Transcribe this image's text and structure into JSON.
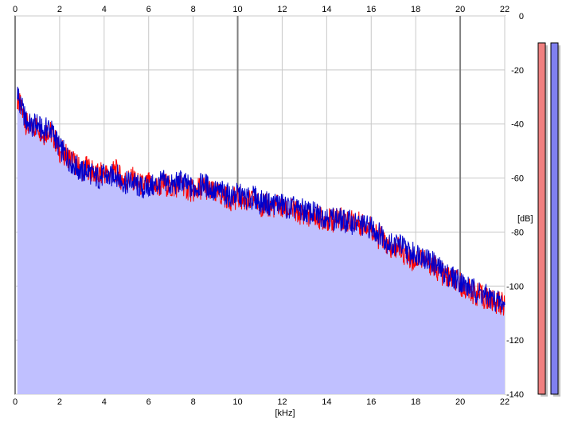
{
  "chart_data": {
    "type": "area",
    "x_ticks": [
      0,
      2,
      4,
      6,
      8,
      10,
      12,
      14,
      16,
      18,
      20,
      22
    ],
    "xlim": [
      0,
      22
    ],
    "xlabel": "[kHz]",
    "y_ticks": [
      0,
      -20,
      -40,
      -60,
      -80,
      -100,
      -120,
      -140
    ],
    "ylim": [
      -140,
      0
    ],
    "ylabel": "[dB]",
    "grid": true,
    "series": [
      {
        "channel": "left",
        "color": "#ff0000",
        "x": [
          0.1,
          0.25,
          0.5,
          0.75,
          1,
          1.25,
          1.5,
          1.75,
          2,
          2.25,
          2.5,
          2.75,
          3,
          3.25,
          3.5,
          3.75,
          4,
          4.25,
          4.5,
          4.75,
          5,
          5.25,
          5.5,
          5.75,
          6,
          6.25,
          6.5,
          6.75,
          7,
          7.25,
          7.5,
          7.75,
          8,
          8.25,
          8.5,
          8.75,
          9,
          9.25,
          9.5,
          9.75,
          10,
          10.25,
          10.5,
          10.75,
          11,
          11.25,
          11.5,
          11.75,
          12,
          12.25,
          12.5,
          12.75,
          13,
          13.25,
          13.5,
          13.75,
          14,
          14.25,
          14.5,
          14.75,
          15,
          15.25,
          15.5,
          15.75,
          16,
          16.25,
          16.5,
          16.75,
          17,
          17.25,
          17.5,
          17.75,
          18,
          18.25,
          18.5,
          18.75,
          19,
          19.25,
          19.5,
          19.75,
          20,
          20.25,
          20.5,
          20.75,
          21,
          21.25,
          21.5,
          21.75,
          22
        ],
        "values": [
          -30,
          -34,
          -40,
          -42,
          -40,
          -44,
          -42,
          -45,
          -50,
          -51,
          -53,
          -55,
          -57,
          -56,
          -58,
          -59,
          -58,
          -59,
          -57,
          -60,
          -61,
          -60,
          -62,
          -63,
          -62,
          -64,
          -63,
          -62,
          -64,
          -63,
          -62,
          -64,
          -65,
          -64,
          -63,
          -65,
          -66,
          -66,
          -67,
          -68,
          -67,
          -68,
          -69,
          -68,
          -70,
          -70,
          -71,
          -70,
          -71,
          -72,
          -72,
          -73,
          -73,
          -74,
          -74,
          -75,
          -75,
          -76,
          -75,
          -75,
          -76,
          -76,
          -77,
          -77,
          -78,
          -82,
          -82,
          -86,
          -87,
          -85,
          -88,
          -90,
          -90,
          -89,
          -91,
          -92,
          -94,
          -96,
          -97,
          -98,
          -99,
          -101,
          -102,
          -103,
          -104,
          -105,
          -106,
          -106,
          -107
        ]
      },
      {
        "channel": "right",
        "color": "#0000cc",
        "x": [
          0.1,
          0.25,
          0.5,
          0.75,
          1,
          1.25,
          1.5,
          1.75,
          2,
          2.25,
          2.5,
          2.75,
          3,
          3.25,
          3.5,
          3.75,
          4,
          4.25,
          4.5,
          4.75,
          5,
          5.25,
          5.5,
          5.75,
          6,
          6.25,
          6.5,
          6.75,
          7,
          7.25,
          7.5,
          7.75,
          8,
          8.25,
          8.5,
          8.75,
          9,
          9.25,
          9.5,
          9.75,
          10,
          10.25,
          10.5,
          10.75,
          11,
          11.25,
          11.5,
          11.75,
          12,
          12.25,
          12.5,
          12.75,
          13,
          13.25,
          13.5,
          13.75,
          14,
          14.25,
          14.5,
          14.75,
          15,
          15.25,
          15.5,
          15.75,
          16,
          16.25,
          16.5,
          16.75,
          17,
          17.25,
          17.5,
          17.75,
          18,
          18.25,
          18.5,
          18.75,
          19,
          19.25,
          19.5,
          19.75,
          20,
          20.25,
          20.5,
          20.75,
          21,
          21.25,
          21.5,
          21.75,
          22
        ],
        "values": [
          -28,
          -33,
          -39,
          -41,
          -40,
          -43,
          -41,
          -44,
          -49,
          -51,
          -54,
          -56,
          -58,
          -57,
          -59,
          -60,
          -59,
          -60,
          -58,
          -61,
          -62,
          -61,
          -63,
          -64,
          -63,
          -63,
          -62,
          -61,
          -63,
          -62,
          -61,
          -63,
          -64,
          -63,
          -62,
          -64,
          -65,
          -65,
          -66,
          -67,
          -66,
          -67,
          -68,
          -67,
          -69,
          -69,
          -70,
          -69,
          -70,
          -71,
          -71,
          -72,
          -72,
          -73,
          -73,
          -74,
          -74,
          -75,
          -75,
          -76,
          -76,
          -77,
          -77,
          -78,
          -78,
          -80,
          -81,
          -84,
          -85,
          -84,
          -86,
          -88,
          -88,
          -88,
          -90,
          -91,
          -93,
          -95,
          -96,
          -97,
          -98,
          -100,
          -101,
          -102,
          -103,
          -104,
          -105,
          -106,
          -107
        ]
      }
    ],
    "level_meters": [
      {
        "channel": "left",
        "color": "#f08080",
        "level_db": -10
      },
      {
        "channel": "right",
        "color": "#8080f0",
        "level_db": -10
      }
    ],
    "fill_color": "#c0c0ff",
    "grid_color": "#c8c8c8",
    "major_grid_color": "#808080"
  }
}
